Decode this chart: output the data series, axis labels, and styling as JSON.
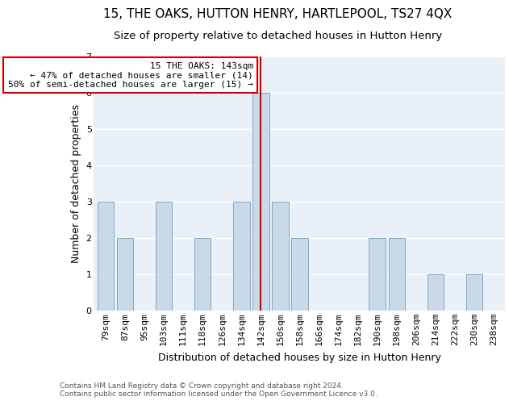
{
  "title": "15, THE OAKS, HUTTON HENRY, HARTLEPOOL, TS27 4QX",
  "subtitle": "Size of property relative to detached houses in Hutton Henry",
  "xlabel": "Distribution of detached houses by size in Hutton Henry",
  "ylabel": "Number of detached properties",
  "categories": [
    "79sqm",
    "87sqm",
    "95sqm",
    "103sqm",
    "111sqm",
    "118sqm",
    "126sqm",
    "134sqm",
    "142sqm",
    "150sqm",
    "158sqm",
    "166sqm",
    "174sqm",
    "182sqm",
    "190sqm",
    "198sqm",
    "206sqm",
    "214sqm",
    "222sqm",
    "230sqm",
    "238sqm"
  ],
  "values": [
    3,
    2,
    0,
    3,
    0,
    2,
    0,
    3,
    6,
    3,
    2,
    0,
    0,
    0,
    2,
    2,
    0,
    1,
    0,
    1,
    0
  ],
  "bar_color": "#c9d9e8",
  "bar_edgecolor": "#7fa8c9",
  "highlight_index": 8,
  "vline_color": "#cc0000",
  "annotation_title": "15 THE OAKS: 143sqm",
  "annotation_line1": "← 47% of detached houses are smaller (14)",
  "annotation_line2": "50% of semi-detached houses are larger (15) →",
  "annotation_box_color": "#ffffff",
  "annotation_box_edgecolor": "#cc0000",
  "ylim": [
    0,
    7
  ],
  "yticks": [
    0,
    1,
    2,
    3,
    4,
    5,
    6,
    7
  ],
  "background_color": "#eaf0f8",
  "grid_color": "#ffffff",
  "fig_background_color": "#ffffff",
  "footer_line1": "Contains HM Land Registry data © Crown copyright and database right 2024.",
  "footer_line2": "Contains public sector information licensed under the Open Government Licence v3.0.",
  "title_fontsize": 11,
  "subtitle_fontsize": 9.5,
  "ylabel_fontsize": 9,
  "xlabel_fontsize": 9,
  "tick_fontsize": 8,
  "footer_fontsize": 6.5,
  "annot_fontsize": 8
}
